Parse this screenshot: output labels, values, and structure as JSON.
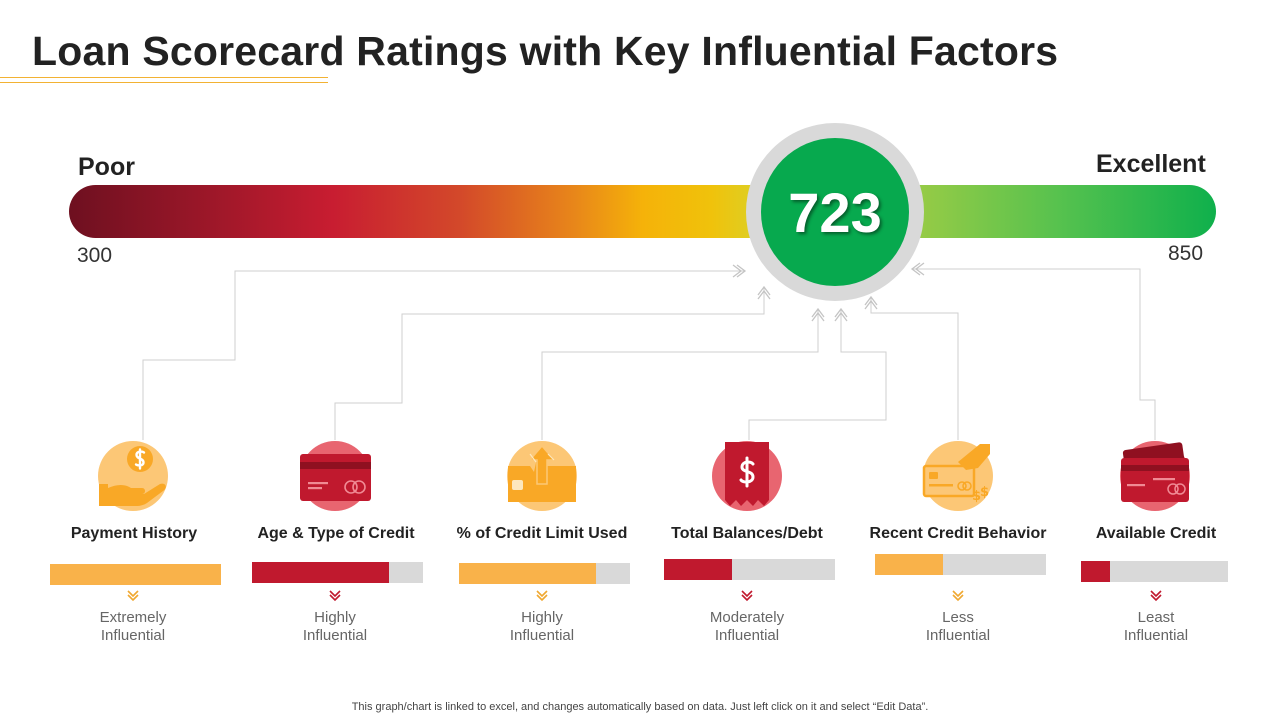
{
  "title": "Loan Scorecard Ratings with Key Influential Factors",
  "gauge": {
    "label_left": "Poor",
    "label_right": "Excellent",
    "min": "300",
    "max": "850",
    "score": "723",
    "score_color": "#07a94e"
  },
  "factors": [
    {
      "name": "Payment History",
      "level_line1": "Extremely",
      "level_line2": "Influential",
      "fill": 1.0,
      "color": "#f9b24a",
      "icon": "hand-dollar-coin-icon"
    },
    {
      "name": "Age & Type of Credit",
      "level_line1": "Highly",
      "level_line2": "Influential",
      "fill": 0.8,
      "color": "#c0192e",
      "icon": "credit-card-icon"
    },
    {
      "name": "% of Credit Limit Used",
      "level_line1": "Highly",
      "level_line2": "Influential",
      "fill": 0.8,
      "color": "#f9b24a",
      "icon": "card-growth-arrow-icon"
    },
    {
      "name": "Total Balances/Debt",
      "level_line1": "Moderately",
      "level_line2": "Influential",
      "fill": 0.4,
      "color": "#c0192e",
      "icon": "dollar-receipt-icon"
    },
    {
      "name": "Recent Credit Behavior",
      "level_line1": "Less",
      "level_line2": "Influential",
      "fill": 0.4,
      "color": "#f9b24a",
      "icon": "card-payment-icon"
    },
    {
      "name": "Available Credit",
      "level_line1": "Least",
      "level_line2": "Influential",
      "fill": 0.2,
      "color": "#c0192e",
      "icon": "credit-cards-icon"
    }
  ],
  "footnote": "This graph/chart is linked to excel,  and changes automatically based on data. Just left click on it and select “Edit Data”."
}
